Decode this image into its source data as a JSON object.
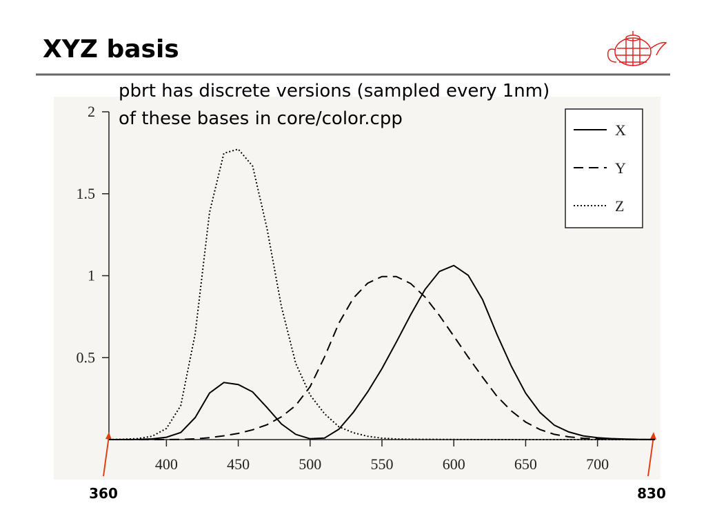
{
  "chart_data": {
    "type": "line",
    "title": "XYZ basis",
    "annotations": [
      "pbrt has discrete versions (sampled every 1nm)",
      "of these bases in core/color.cpp"
    ],
    "range_labels": [
      "360",
      "830"
    ],
    "x": [
      360,
      370,
      380,
      390,
      400,
      410,
      420,
      430,
      440,
      450,
      460,
      470,
      480,
      490,
      500,
      510,
      520,
      530,
      540,
      550,
      560,
      570,
      580,
      590,
      600,
      610,
      620,
      630,
      640,
      650,
      660,
      670,
      680,
      690,
      700,
      710,
      720,
      730,
      740
    ],
    "series": [
      {
        "name": "X",
        "color": "#000000",
        "dash": "solid",
        "values": [
          0.0001,
          0.0004,
          0.0014,
          0.0042,
          0.0143,
          0.0435,
          0.1344,
          0.2839,
          0.3483,
          0.3362,
          0.2908,
          0.1954,
          0.0956,
          0.032,
          0.0049,
          0.0093,
          0.0633,
          0.1655,
          0.2904,
          0.4334,
          0.5945,
          0.7621,
          0.9163,
          1.0263,
          1.0622,
          1.0026,
          0.8544,
          0.6424,
          0.4479,
          0.2835,
          0.1649,
          0.0874,
          0.0468,
          0.0227,
          0.0114,
          0.0058,
          0.0029,
          0.0014,
          0.0007
        ]
      },
      {
        "name": "Y",
        "color": "#000000",
        "dash": "dashed",
        "values": [
          0,
          0,
          0,
          0.0001,
          0.0004,
          0.0012,
          0.004,
          0.0116,
          0.023,
          0.038,
          0.06,
          0.091,
          0.139,
          0.208,
          0.323,
          0.503,
          0.71,
          0.862,
          0.954,
          0.995,
          0.995,
          0.952,
          0.87,
          0.757,
          0.631,
          0.503,
          0.381,
          0.265,
          0.175,
          0.107,
          0.061,
          0.032,
          0.017,
          0.0082,
          0.0041,
          0.0021,
          0.001,
          0.0005,
          0.0002
        ]
      },
      {
        "name": "Z",
        "color": "#000000",
        "dash": "dotted",
        "values": [
          0.0006,
          0.002,
          0.0065,
          0.0201,
          0.0679,
          0.2074,
          0.6456,
          1.3856,
          1.7471,
          1.7721,
          1.6692,
          1.2876,
          0.813,
          0.4652,
          0.272,
          0.1582,
          0.0782,
          0.0422,
          0.0203,
          0.0087,
          0.0039,
          0.0021,
          0.0017,
          0.0011,
          0.0008,
          0.0003,
          0.0002,
          0,
          0,
          0,
          0,
          0,
          0,
          0,
          0,
          0,
          0,
          0,
          0
        ]
      }
    ],
    "xlim": [
      360,
      740
    ],
    "xticks": [
      400,
      450,
      500,
      550,
      600,
      650,
      700
    ],
    "ylim": [
      0,
      2
    ],
    "yticks": [
      0.5,
      1,
      1.5,
      2
    ],
    "legend": "upper right"
  }
}
